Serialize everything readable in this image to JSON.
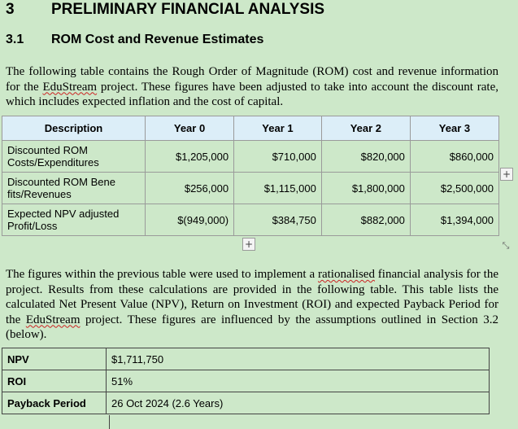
{
  "heading1": {
    "number": "3",
    "title": "PRELIMINARY FINANCIAL ANALYSIS"
  },
  "heading2": {
    "number": "3.1",
    "title": "ROM Cost and Revenue Estimates"
  },
  "para1": {
    "before": "The following table contains the Rough Order of Magnitude (ROM) cost and revenue information for the ",
    "project_name": "EduStream",
    "after": " project.  These figures have been adjusted to take into account the discount rate, which includes expected inflation and the cost of capital."
  },
  "rom_table": {
    "headers": [
      "Description",
      "Year 0",
      "Year 1",
      "Year 2",
      "Year 3"
    ],
    "rows": [
      {
        "description": "Discounted ROM Costs/Expenditures",
        "values": [
          "$1,205,000",
          "$710,000",
          "$820,000",
          "$860,000"
        ]
      },
      {
        "description": "Discounted ROM Bene fits/Revenues",
        "values": [
          "$256,000",
          "$1,115,000",
          "$1,800,000",
          "$2,500,000"
        ]
      },
      {
        "description": "Expected NPV adjusted Profit/Loss",
        "values": [
          "$(949,000)",
          "$384,750",
          "$882,000",
          "$1,394,000"
        ]
      }
    ]
  },
  "para2": {
    "part1": "The figures within the previous table were used to implement a ",
    "word1": "rationalised",
    "part2": " financial analysis for the project.  Results from these calculations are provided in the following table.  This table lists the calculated Net Present Value (NPV), Return on Investment (ROI) and expected Payback Period for the ",
    "word2": "EduStream",
    "part3": " project.  These figures are influenced by the assumptions outlined in Section 3.2 (below)."
  },
  "metrics": [
    {
      "label": "NPV",
      "value": "$1,711,750"
    },
    {
      "label": "ROI",
      "value": "51%"
    },
    {
      "label": "Payback Period",
      "value": "26 Oct 2024 (2.6 Years)"
    }
  ],
  "icons": {
    "add_row": "+",
    "add_column": "+",
    "resize": "⤡"
  }
}
